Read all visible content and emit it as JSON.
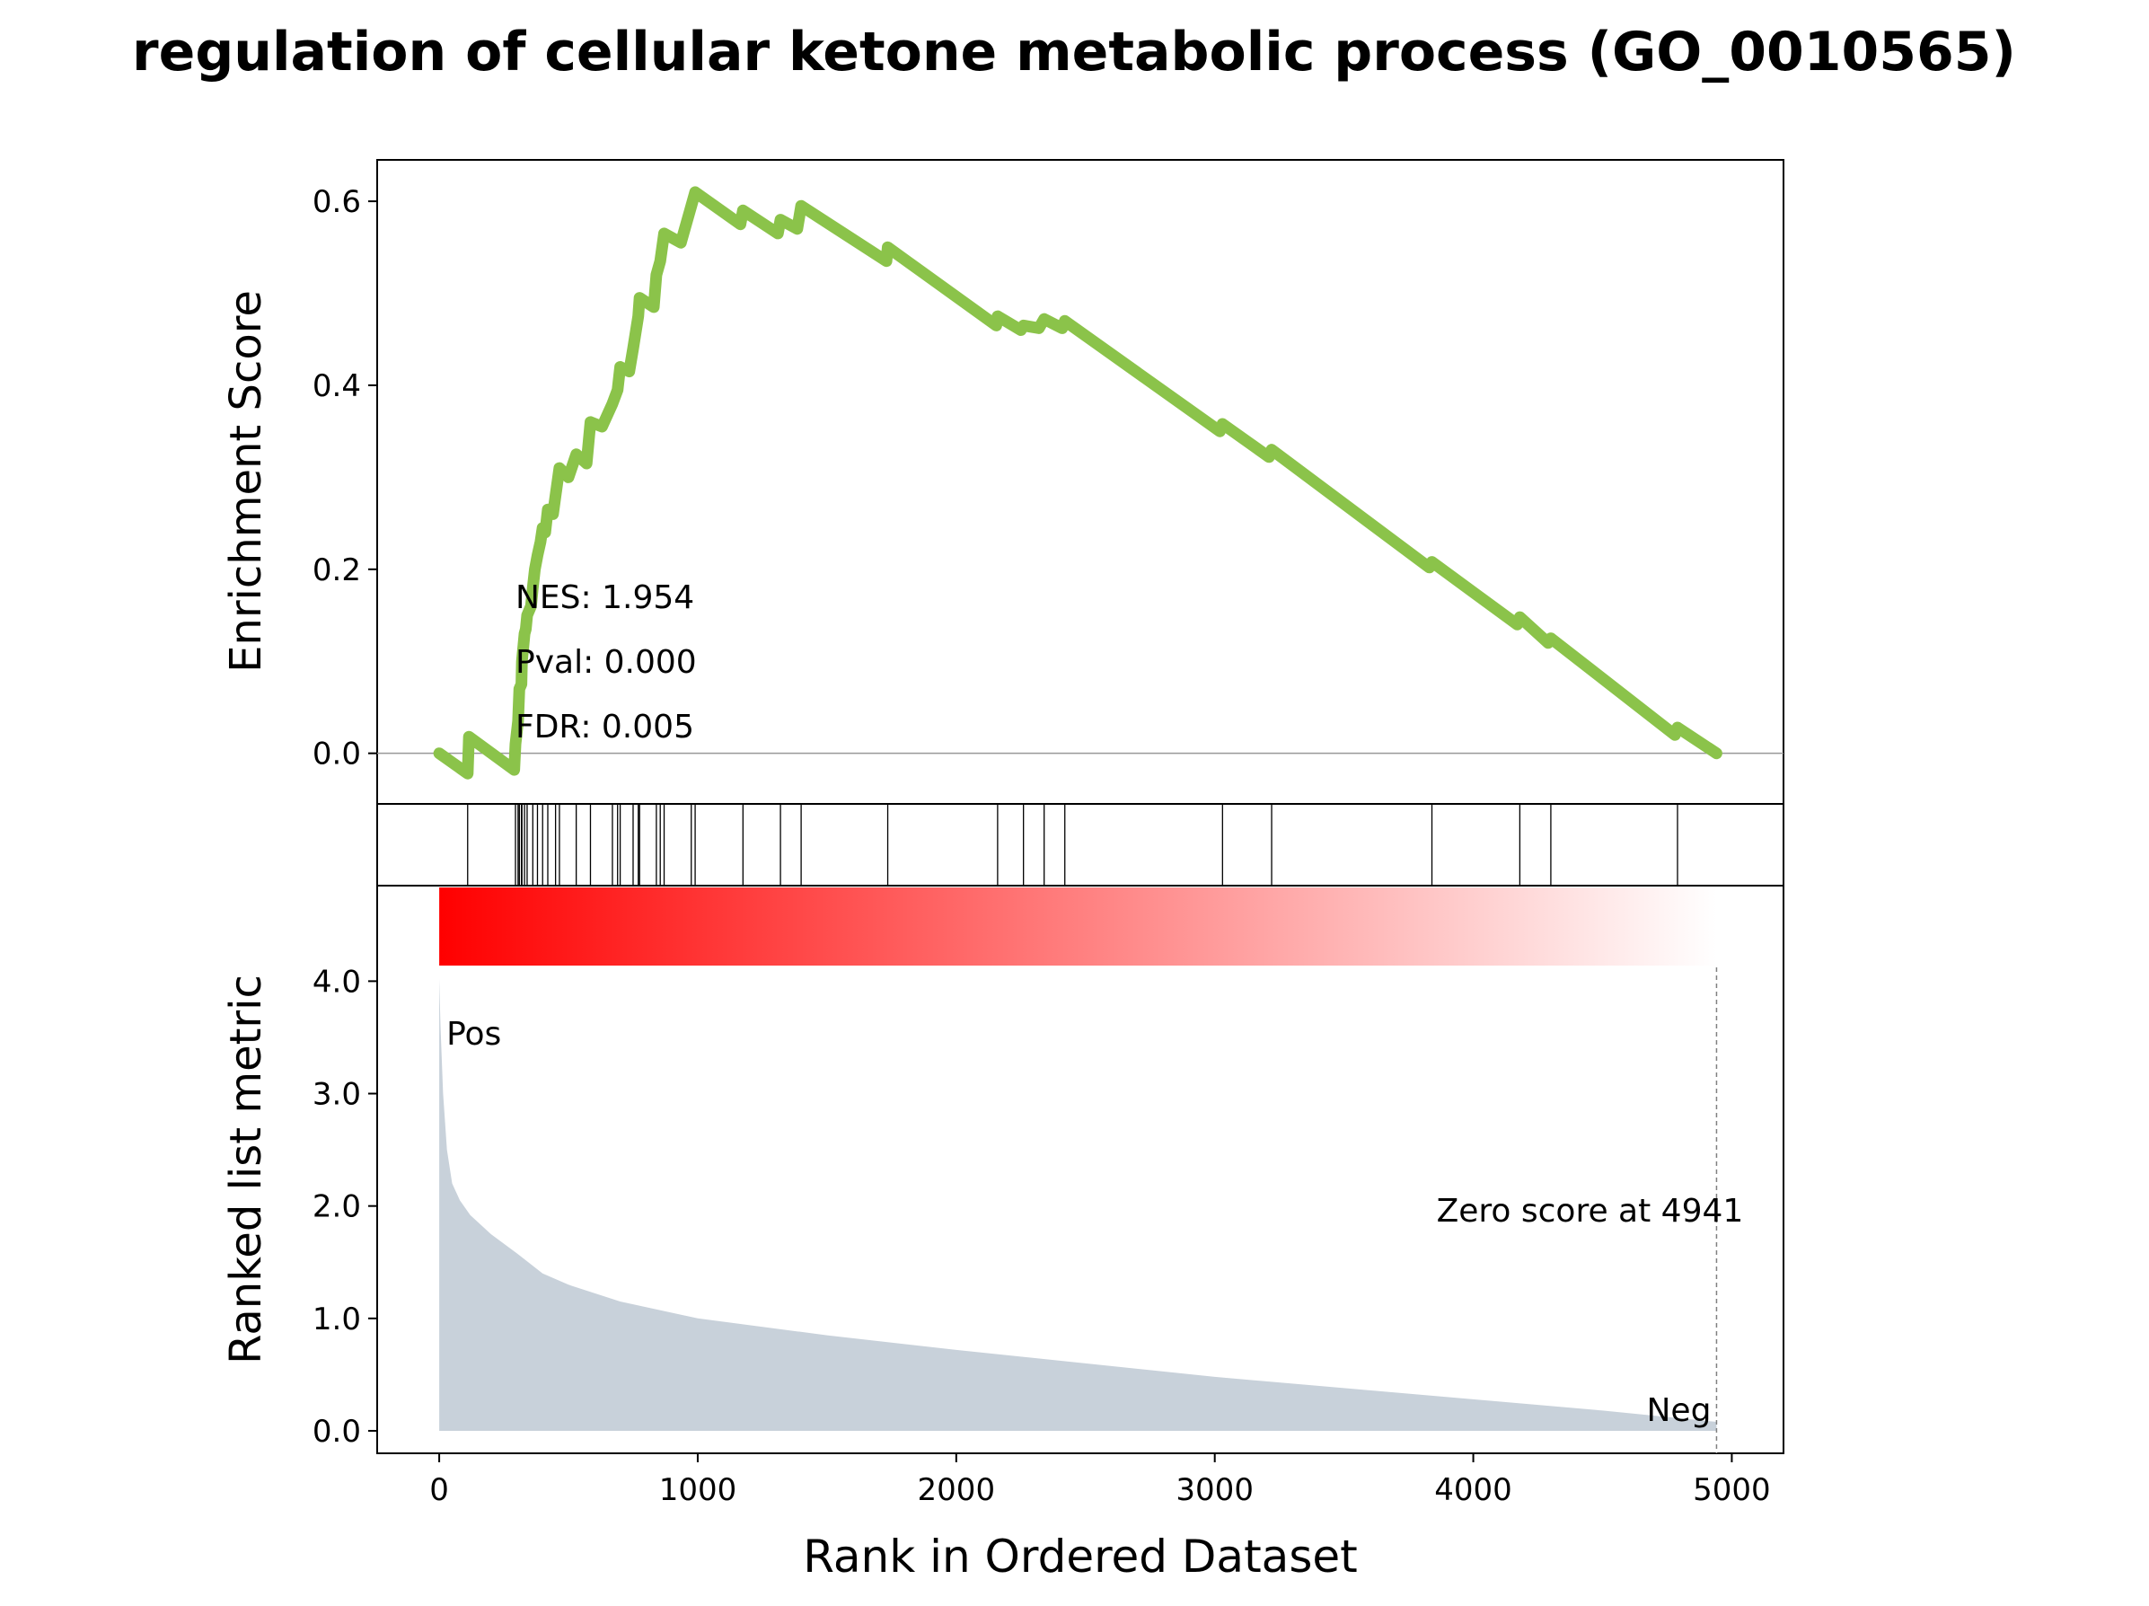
{
  "chart_data": {
    "type": "line",
    "title": "regulation of cellular ketone metabolic process (GO_0010565)",
    "xlabel": "Rank in Ordered Dataset",
    "x_ticks": [
      0,
      1000,
      2000,
      3000,
      4000,
      5000
    ],
    "xlim": [
      -240,
      5200
    ],
    "panels": {
      "enrichment": {
        "ylabel": "Enrichment Score",
        "ylim": [
          -0.055,
          0.645
        ],
        "y_ticks": [
          0.0,
          0.2,
          0.4,
          0.6
        ],
        "line_color": "#8bc34a",
        "zero_line_color": "#999999",
        "stats": {
          "nes": "NES: 1.954",
          "pval": "Pval: 0.000",
          "fdr": "FDR: 0.005"
        },
        "points": [
          [
            0,
            0.0
          ],
          [
            110,
            -0.022
          ],
          [
            115,
            0.018
          ],
          [
            290,
            -0.018
          ],
          [
            295,
            0.01
          ],
          [
            305,
            0.035
          ],
          [
            310,
            0.07
          ],
          [
            318,
            0.075
          ],
          [
            320,
            0.1
          ],
          [
            330,
            0.13
          ],
          [
            335,
            0.135
          ],
          [
            340,
            0.15
          ],
          [
            355,
            0.16
          ],
          [
            362,
            0.18
          ],
          [
            370,
            0.2
          ],
          [
            380,
            0.215
          ],
          [
            392,
            0.23
          ],
          [
            400,
            0.245
          ],
          [
            410,
            0.24
          ],
          [
            420,
            0.265
          ],
          [
            440,
            0.26
          ],
          [
            450,
            0.28
          ],
          [
            465,
            0.31
          ],
          [
            500,
            0.3
          ],
          [
            530,
            0.325
          ],
          [
            570,
            0.315
          ],
          [
            585,
            0.36
          ],
          [
            630,
            0.355
          ],
          [
            670,
            0.38
          ],
          [
            690,
            0.395
          ],
          [
            700,
            0.42
          ],
          [
            735,
            0.415
          ],
          [
            750,
            0.44
          ],
          [
            770,
            0.475
          ],
          [
            775,
            0.495
          ],
          [
            830,
            0.485
          ],
          [
            840,
            0.52
          ],
          [
            855,
            0.535
          ],
          [
            870,
            0.565
          ],
          [
            935,
            0.555
          ],
          [
            975,
            0.595
          ],
          [
            990,
            0.61
          ],
          [
            1165,
            0.575
          ],
          [
            1175,
            0.59
          ],
          [
            1310,
            0.565
          ],
          [
            1320,
            0.58
          ],
          [
            1385,
            0.57
          ],
          [
            1400,
            0.595
          ],
          [
            1730,
            0.535
          ],
          [
            1735,
            0.55
          ],
          [
            2155,
            0.465
          ],
          [
            2160,
            0.475
          ],
          [
            2250,
            0.46
          ],
          [
            2260,
            0.465
          ],
          [
            2320,
            0.462
          ],
          [
            2340,
            0.472
          ],
          [
            2410,
            0.462
          ],
          [
            2420,
            0.47
          ],
          [
            3020,
            0.35
          ],
          [
            3030,
            0.358
          ],
          [
            3210,
            0.322
          ],
          [
            3220,
            0.33
          ],
          [
            3830,
            0.202
          ],
          [
            3840,
            0.208
          ],
          [
            4170,
            0.14
          ],
          [
            4180,
            0.148
          ],
          [
            4290,
            0.12
          ],
          [
            4300,
            0.125
          ],
          [
            4780,
            0.02
          ],
          [
            4790,
            0.028
          ],
          [
            4941,
            0.0
          ]
        ]
      },
      "hits": {
        "positions": [
          110,
          295,
          305,
          310,
          318,
          320,
          330,
          340,
          362,
          380,
          400,
          420,
          450,
          465,
          530,
          585,
          670,
          690,
          700,
          750,
          770,
          775,
          840,
          855,
          870,
          975,
          990,
          1175,
          1320,
          1400,
          1735,
          2160,
          2260,
          2340,
          2420,
          3030,
          3220,
          3840,
          4180,
          4300,
          4790
        ]
      },
      "ranked": {
        "ylabel": "Ranked list metric",
        "ylim": [
          -0.2,
          4.85
        ],
        "y_ticks": [
          "0.0",
          "1.0",
          "2.0",
          "3.0",
          "4.0"
        ],
        "fill_color": "#c8d1da",
        "zero_score_label": "Zero score at 4941",
        "zero_score_x": 4941,
        "pos_label": "Pos",
        "neg_label": "Neg",
        "pos_color": "#ff0000",
        "neg_color": "#0000ff",
        "heat_color_start": "#ff0000",
        "heat_color_end": "#ffffff",
        "profile": [
          [
            0,
            4.02
          ],
          [
            5,
            3.6
          ],
          [
            15,
            3.0
          ],
          [
            30,
            2.5
          ],
          [
            50,
            2.2
          ],
          [
            80,
            2.05
          ],
          [
            120,
            1.92
          ],
          [
            200,
            1.75
          ],
          [
            300,
            1.58
          ],
          [
            400,
            1.4
          ],
          [
            500,
            1.3
          ],
          [
            700,
            1.15
          ],
          [
            1000,
            1.0
          ],
          [
            1500,
            0.85
          ],
          [
            2000,
            0.72
          ],
          [
            2500,
            0.6
          ],
          [
            3000,
            0.48
          ],
          [
            3500,
            0.38
          ],
          [
            4000,
            0.28
          ],
          [
            4500,
            0.18
          ],
          [
            4941,
            0.08
          ]
        ]
      }
    }
  }
}
